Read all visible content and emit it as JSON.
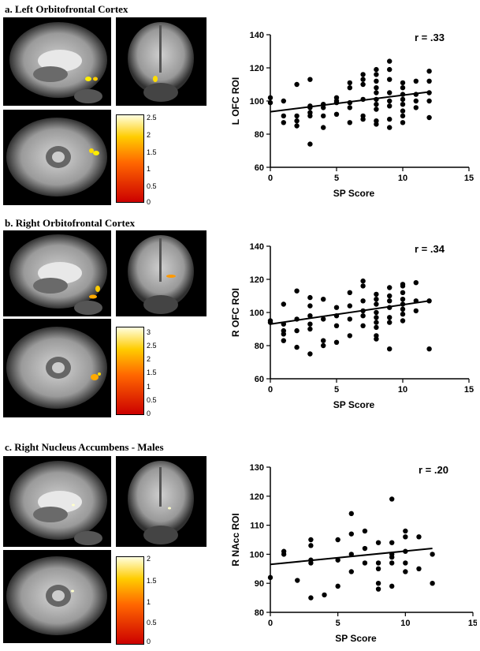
{
  "panels": [
    {
      "letter": "a.",
      "title": "Left Orbitofrontal Cortex",
      "colorbar": {
        "ticks": [
          "2.5",
          "2",
          "1.5",
          "1",
          "0.5",
          "0"
        ],
        "max": 2.6
      }
    },
    {
      "letter": "b.",
      "title": "Right Orbitofrontal Cortex",
      "colorbar": {
        "ticks": [
          "3",
          "2.5",
          "2",
          "1.5",
          "1",
          "0.5",
          "0"
        ],
        "max": 3.2
      }
    },
    {
      "letter": "c.",
      "title": "Right Nucleus Accumbens - Males",
      "colorbar": {
        "ticks": [
          "2",
          "1.5",
          "1",
          "0.5",
          "0"
        ],
        "max": 2.1
      }
    }
  ],
  "colors": {
    "hot_low": "#cc0000",
    "hot_mid": "#ff8800",
    "hot_high": "#ffffcc",
    "points": "#000000"
  },
  "chart_data": [
    {
      "type": "scatter",
      "title": "",
      "annotation": "r = .33",
      "xlabel": "SP Score",
      "ylabel": "L OFC ROI",
      "xlim": [
        0,
        15
      ],
      "ylim": [
        60,
        140
      ],
      "xticks": [
        0,
        5,
        10,
        15
      ],
      "yticks": [
        60,
        80,
        100,
        120,
        140
      ],
      "fit": {
        "x": [
          0,
          12
        ],
        "y": [
          93.5,
          105.5
        ]
      },
      "points": [
        [
          0,
          102
        ],
        [
          0,
          99
        ],
        [
          1,
          100
        ],
        [
          1,
          91
        ],
        [
          1,
          87
        ],
        [
          2,
          110
        ],
        [
          2,
          91
        ],
        [
          2,
          88
        ],
        [
          2,
          85
        ],
        [
          3,
          113
        ],
        [
          3,
          97
        ],
        [
          3,
          96
        ],
        [
          3,
          93
        ],
        [
          3,
          91
        ],
        [
          3,
          74
        ],
        [
          4,
          98
        ],
        [
          4,
          96
        ],
        [
          4,
          91
        ],
        [
          4,
          84
        ],
        [
          5,
          102
        ],
        [
          5,
          100
        ],
        [
          5,
          99
        ],
        [
          5,
          92
        ],
        [
          6,
          111
        ],
        [
          6,
          108
        ],
        [
          6,
          99
        ],
        [
          6,
          96
        ],
        [
          6,
          87
        ],
        [
          7,
          116
        ],
        [
          7,
          113
        ],
        [
          7,
          110
        ],
        [
          7,
          101
        ],
        [
          7,
          91
        ],
        [
          7,
          89
        ],
        [
          8,
          119
        ],
        [
          8,
          116
        ],
        [
          8,
          112
        ],
        [
          8,
          108
        ],
        [
          8,
          105
        ],
        [
          8,
          101
        ],
        [
          8,
          98
        ],
        [
          8,
          95
        ],
        [
          8,
          88
        ],
        [
          8,
          86
        ],
        [
          9,
          124
        ],
        [
          9,
          119
        ],
        [
          9,
          113
        ],
        [
          9,
          105
        ],
        [
          9,
          100
        ],
        [
          9,
          97
        ],
        [
          9,
          89
        ],
        [
          9,
          84
        ],
        [
          10,
          111
        ],
        [
          10,
          108
        ],
        [
          10,
          104
        ],
        [
          10,
          101
        ],
        [
          10,
          98
        ],
        [
          10,
          94
        ],
        [
          10,
          91
        ],
        [
          10,
          87
        ],
        [
          11,
          112
        ],
        [
          11,
          104
        ],
        [
          11,
          100
        ],
        [
          11,
          96
        ],
        [
          12,
          118
        ],
        [
          12,
          112
        ],
        [
          12,
          105
        ],
        [
          12,
          100
        ],
        [
          12,
          90
        ]
      ]
    },
    {
      "type": "scatter",
      "title": "",
      "annotation": "r = .34",
      "xlabel": "SP Score",
      "ylabel": "R OFC ROI",
      "xlim": [
        0,
        15
      ],
      "ylim": [
        60,
        140
      ],
      "xticks": [
        0,
        5,
        10,
        15
      ],
      "yticks": [
        60,
        80,
        100,
        120,
        140
      ],
      "fit": {
        "x": [
          0,
          12
        ],
        "y": [
          93,
          107
        ]
      },
      "points": [
        [
          0,
          95
        ],
        [
          0,
          94
        ],
        [
          1,
          105
        ],
        [
          1,
          93
        ],
        [
          1,
          89
        ],
        [
          1,
          87
        ],
        [
          1,
          83
        ],
        [
          2,
          113
        ],
        [
          2,
          96
        ],
        [
          2,
          89
        ],
        [
          2,
          79
        ],
        [
          3,
          109
        ],
        [
          3,
          104
        ],
        [
          3,
          98
        ],
        [
          3,
          93
        ],
        [
          3,
          90
        ],
        [
          3,
          75
        ],
        [
          4,
          108
        ],
        [
          4,
          96
        ],
        [
          4,
          83
        ],
        [
          4,
          80
        ],
        [
          5,
          103
        ],
        [
          5,
          98
        ],
        [
          5,
          92
        ],
        [
          5,
          82
        ],
        [
          6,
          112
        ],
        [
          6,
          104
        ],
        [
          6,
          96
        ],
        [
          6,
          86
        ],
        [
          7,
          119
        ],
        [
          7,
          116
        ],
        [
          7,
          107
        ],
        [
          7,
          101
        ],
        [
          7,
          98
        ],
        [
          7,
          92
        ],
        [
          8,
          111
        ],
        [
          8,
          108
        ],
        [
          8,
          105
        ],
        [
          8,
          100
        ],
        [
          8,
          97
        ],
        [
          8,
          94
        ],
        [
          8,
          91
        ],
        [
          8,
          86
        ],
        [
          8,
          84
        ],
        [
          9,
          115
        ],
        [
          9,
          110
        ],
        [
          9,
          107
        ],
        [
          9,
          103
        ],
        [
          9,
          97
        ],
        [
          9,
          94
        ],
        [
          9,
          78
        ],
        [
          10,
          117
        ],
        [
          10,
          116
        ],
        [
          10,
          112
        ],
        [
          10,
          108
        ],
        [
          10,
          105
        ],
        [
          10,
          102
        ],
        [
          10,
          99
        ],
        [
          10,
          95
        ],
        [
          11,
          118
        ],
        [
          11,
          107
        ],
        [
          11,
          101
        ],
        [
          12,
          107
        ],
        [
          12,
          78
        ]
      ]
    },
    {
      "type": "scatter",
      "title": "",
      "annotation": "r = .20",
      "xlabel": "SP Score",
      "ylabel": "R  NAcc ROI",
      "xlim": [
        0,
        15
      ],
      "ylim": [
        80,
        130
      ],
      "xticks": [
        0,
        5,
        10,
        15
      ],
      "yticks": [
        80,
        90,
        100,
        110,
        120,
        130
      ],
      "fit": {
        "x": [
          0,
          12
        ],
        "y": [
          96.5,
          102
        ]
      },
      "points": [
        [
          0,
          92
        ],
        [
          1,
          101
        ],
        [
          1,
          100
        ],
        [
          2,
          91
        ],
        [
          3,
          105
        ],
        [
          3,
          103
        ],
        [
          3,
          98
        ],
        [
          3,
          97
        ],
        [
          3,
          85
        ],
        [
          4,
          86
        ],
        [
          5,
          105
        ],
        [
          5,
          98
        ],
        [
          5,
          89
        ],
        [
          6,
          114
        ],
        [
          6,
          107
        ],
        [
          6,
          100
        ],
        [
          6,
          94
        ],
        [
          7,
          108
        ],
        [
          7,
          102
        ],
        [
          7,
          97
        ],
        [
          8,
          104
        ],
        [
          8,
          97
        ],
        [
          8,
          95
        ],
        [
          8,
          90
        ],
        [
          8,
          88
        ],
        [
          9,
          119
        ],
        [
          9,
          104
        ],
        [
          9,
          100
        ],
        [
          9,
          99
        ],
        [
          9,
          97
        ],
        [
          9,
          89
        ],
        [
          10,
          108
        ],
        [
          10,
          106
        ],
        [
          10,
          101
        ],
        [
          10,
          97
        ],
        [
          10,
          94
        ],
        [
          11,
          106
        ],
        [
          11,
          95
        ],
        [
          12,
          100
        ],
        [
          12,
          90
        ]
      ]
    }
  ]
}
